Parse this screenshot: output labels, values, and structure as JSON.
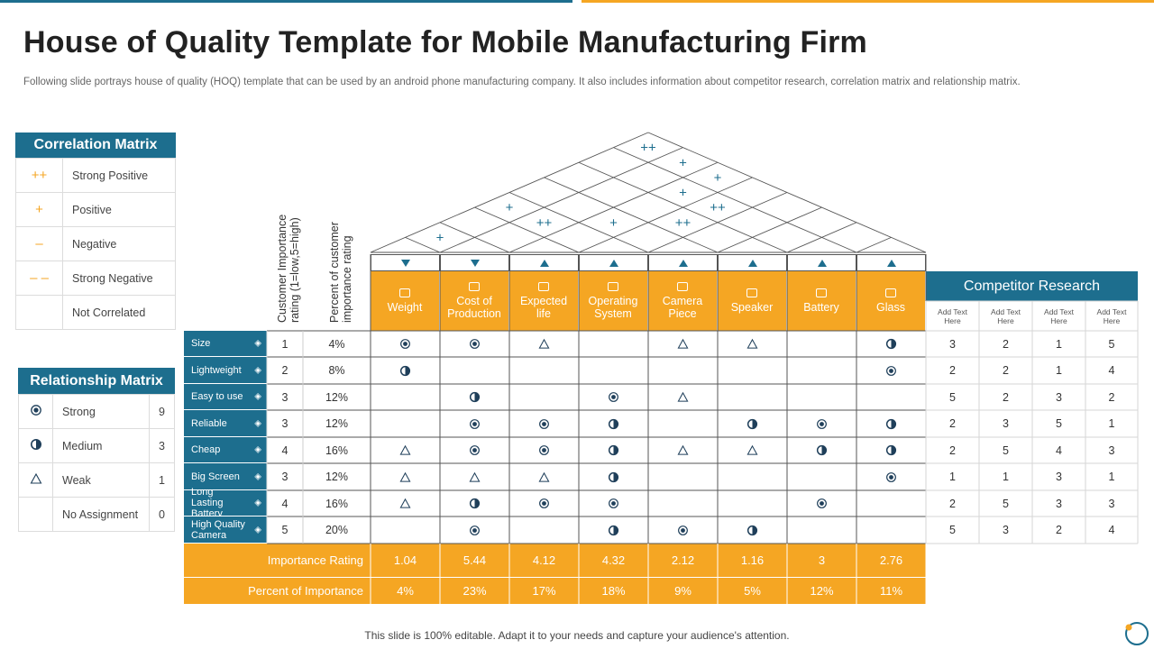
{
  "title": "House of Quality Template for Mobile Manufacturing Firm",
  "subtitle": "Following slide portrays house of quality (HOQ) template that can be used by an android phone manufacturing company. It also includes information about competitor research, correlation matrix and relationship matrix.",
  "correlation": {
    "title": "Correlation Matrix",
    "items": [
      {
        "symbol": "++",
        "label": "Strong Positive"
      },
      {
        "symbol": "+",
        "label": "Positive"
      },
      {
        "symbol": "–",
        "label": "Negative"
      },
      {
        "symbol": "– –",
        "label": "Strong Negative"
      },
      {
        "symbol": "",
        "label": "Not Correlated"
      }
    ]
  },
  "relationship": {
    "title": "Relationship Matrix",
    "items": [
      {
        "symbol": "strong",
        "label": "Strong",
        "value": "9"
      },
      {
        "symbol": "medium",
        "label": "Medium",
        "value": "3"
      },
      {
        "symbol": "weak",
        "label": "Weak",
        "value": "1"
      },
      {
        "symbol": "",
        "label": "No Assignment",
        "value": "0"
      }
    ]
  },
  "headers": {
    "importance": "Customer Importance rating (1=low,5=high)",
    "percent": "Percent of customer importance rating"
  },
  "roof_symbols": [
    "++",
    "+",
    "+",
    "+",
    "++",
    "+",
    "+",
    "++",
    "++",
    "+"
  ],
  "technical": [
    {
      "label": "Weight",
      "dir": "down",
      "icon": "weight-icon"
    },
    {
      "label": "Cost of Production",
      "dir": "down",
      "icon": "cost-icon"
    },
    {
      "label": "Expected life",
      "dir": "up",
      "icon": "life-icon"
    },
    {
      "label": "Operating System",
      "dir": "up",
      "icon": "os-icon"
    },
    {
      "label": "Camera Piece",
      "dir": "up",
      "icon": "camera-icon"
    },
    {
      "label": "Speaker",
      "dir": "up",
      "icon": "speaker-icon"
    },
    {
      "label": "Battery",
      "dir": "up",
      "icon": "battery-icon"
    },
    {
      "label": "Glass",
      "dir": "up",
      "icon": "glass-icon"
    }
  ],
  "rows": [
    {
      "label": "Size",
      "icon": "size-icon",
      "importance": "1",
      "percent": "4%",
      "cells": [
        "S",
        "S",
        "W",
        "",
        "W",
        "W",
        "",
        "M"
      ],
      "competitors": [
        "3",
        "2",
        "1",
        "5"
      ]
    },
    {
      "label": "Lightweight",
      "icon": "feather-icon",
      "importance": "2",
      "percent": "8%",
      "cells": [
        "M",
        "",
        "",
        "",
        "",
        "",
        "",
        "S"
      ],
      "competitors": [
        "2",
        "2",
        "1",
        "4"
      ]
    },
    {
      "label": "Easy to use",
      "icon": "hand-icon",
      "importance": "3",
      "percent": "12%",
      "cells": [
        "",
        "M",
        "",
        "S",
        "W",
        "",
        "",
        ""
      ],
      "competitors": [
        "5",
        "2",
        "3",
        "2"
      ]
    },
    {
      "label": "Reliable",
      "icon": "shield-icon",
      "importance": "3",
      "percent": "12%",
      "cells": [
        "",
        "S",
        "S",
        "M",
        "",
        "M",
        "S",
        "M"
      ],
      "competitors": [
        "2",
        "3",
        "5",
        "1"
      ]
    },
    {
      "label": "Cheap",
      "icon": "price-icon",
      "importance": "4",
      "percent": "16%",
      "cells": [
        "W",
        "S",
        "S",
        "M",
        "W",
        "W",
        "M",
        "M"
      ],
      "competitors": [
        "2",
        "5",
        "4",
        "3"
      ]
    },
    {
      "label": "Big Screen",
      "icon": "screen-icon",
      "importance": "3",
      "percent": "12%",
      "cells": [
        "W",
        "W",
        "W",
        "M",
        "",
        "",
        "",
        "S"
      ],
      "competitors": [
        "1",
        "1",
        "3",
        "1"
      ]
    },
    {
      "label": "Long Lasting Battery",
      "icon": "battery-icon",
      "importance": "4",
      "percent": "16%",
      "cells": [
        "W",
        "M",
        "S",
        "S",
        "",
        "",
        "S",
        ""
      ],
      "competitors": [
        "2",
        "5",
        "3",
        "3"
      ]
    },
    {
      "label": "High Quality Camera",
      "icon": "camera-icon",
      "importance": "5",
      "percent": "20%",
      "cells": [
        "",
        "S",
        "",
        "M",
        "S",
        "M",
        "",
        ""
      ],
      "competitors": [
        "5",
        "3",
        "2",
        "4"
      ]
    }
  ],
  "importance_rating": {
    "label": "Importance Rating",
    "values": [
      "1.04",
      "5.44",
      "4.12",
      "4.32",
      "2.12",
      "1.16",
      "3",
      "2.76"
    ]
  },
  "percent_importance": {
    "label": "Percent of Importance",
    "values": [
      "4%",
      "23%",
      "17%",
      "18%",
      "9%",
      "5%",
      "12%",
      "11%"
    ]
  },
  "competitor": {
    "title": "Competitor Research",
    "columns": [
      "Add Text Here",
      "Add Text Here",
      "Add Text Here",
      "Add Text Here"
    ]
  },
  "footer": "This slide is 100% editable. Adapt it to your needs and capture your audience's attention.",
  "colors": {
    "teal": "#1d6e8e",
    "orange": "#f5a623"
  }
}
